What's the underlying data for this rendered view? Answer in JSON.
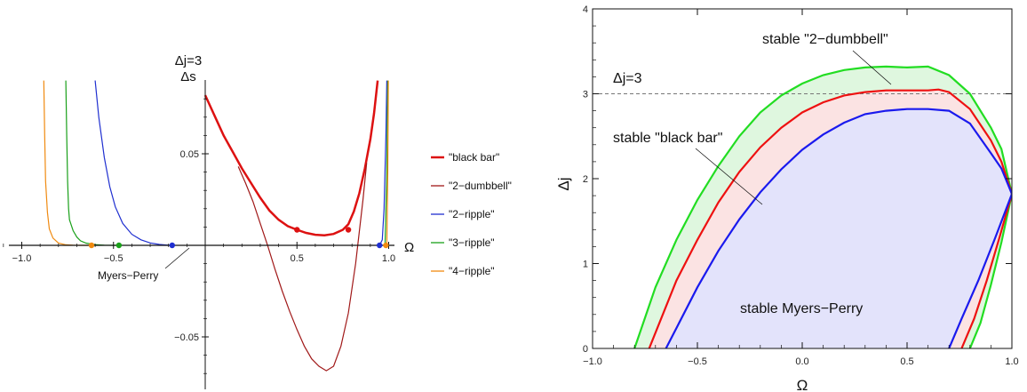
{
  "chart_data": [
    {
      "type": "line",
      "title": "",
      "xlabel": "Ω",
      "ylabel_lines": [
        "Δj=3",
        "Δs"
      ],
      "xlim": [
        -1.2,
        1.05
      ],
      "ylim": [
        -0.077,
        0.09
      ],
      "x_ticks": [
        -1.0,
        -0.5,
        0.5,
        1.0
      ],
      "x_tick_labels": [
        "−1.0",
        "−0.5",
        "0.5",
        "1.0"
      ],
      "y_ticks": [
        0.05,
        -0.05
      ],
      "y_tick_labels": [
        "0.05",
        "−0.05"
      ],
      "legend_position": "right",
      "annotations": [
        {
          "text": "Myers−Perry",
          "x": -0.05,
          "y": 0.0
        }
      ],
      "series": [
        {
          "name": "\"black bar\"",
          "color": "#dd1111",
          "width": 2.5,
          "x": [
            0.0,
            0.05,
            0.1,
            0.15,
            0.2,
            0.25,
            0.3,
            0.35,
            0.4,
            0.45,
            0.5,
            0.55,
            0.6,
            0.65,
            0.7,
            0.75,
            0.78,
            0.81,
            0.84,
            0.87,
            0.9,
            0.92,
            0.94
          ],
          "y": [
            0.082,
            0.071,
            0.06,
            0.051,
            0.042,
            0.034,
            0.026,
            0.019,
            0.014,
            0.0105,
            0.0085,
            0.0068,
            0.0058,
            0.0055,
            0.0062,
            0.0085,
            0.0115,
            0.0185,
            0.0285,
            0.042,
            0.058,
            0.072,
            0.09
          ],
          "markers": [
            {
              "x": 0.5,
              "y": 0.0085
            },
            {
              "x": 0.78,
              "y": 0.0085
            }
          ]
        },
        {
          "name": "\"2−dumbbell\"",
          "color": "#a01818",
          "width": 1.2,
          "x": [
            0.18,
            0.22,
            0.26,
            0.3,
            0.34,
            0.38,
            0.42,
            0.46,
            0.5,
            0.54,
            0.58,
            0.62,
            0.66,
            0.7,
            0.74,
            0.78,
            0.82,
            0.86,
            0.88
          ],
          "y": [
            0.043,
            0.034,
            0.024,
            0.012,
            0.0,
            -0.013,
            -0.025,
            -0.036,
            -0.046,
            -0.055,
            -0.062,
            -0.066,
            -0.0685,
            -0.066,
            -0.055,
            -0.037,
            -0.01,
            0.025,
            0.045
          ]
        },
        {
          "name": "\"2−ripple\"",
          "color": "#1f2fd0",
          "width": 1.2,
          "x": [
            -0.6,
            -0.58,
            -0.55,
            -0.52,
            -0.49,
            -0.45,
            -0.4,
            -0.35,
            -0.3,
            -0.25,
            -0.2,
            -0.18,
            0.95,
            0.965,
            0.975,
            0.985,
            0.99
          ],
          "y": [
            0.09,
            0.07,
            0.048,
            0.032,
            0.021,
            0.012,
            0.006,
            0.003,
            0.0013,
            0.0005,
            0.0001,
            0.0,
            0.0,
            0.003,
            0.02,
            0.06,
            0.09
          ],
          "markers": [
            {
              "x": -0.18,
              "y": 0.0
            },
            {
              "x": 0.95,
              "y": 0.0
            }
          ]
        },
        {
          "name": "\"3−ripple\"",
          "color": "#1aa01a",
          "width": 1.2,
          "x": [
            -0.76,
            -0.755,
            -0.75,
            -0.745,
            -0.74,
            -0.72,
            -0.7,
            -0.68,
            -0.65,
            -0.6,
            -0.55,
            -0.5,
            -0.47,
            0.98,
            0.99,
            0.995
          ],
          "y": [
            0.09,
            0.06,
            0.035,
            0.02,
            0.014,
            0.008,
            0.0045,
            0.0025,
            0.0012,
            0.0004,
            0.0001,
            0.0,
            0.0,
            0.0,
            0.04,
            0.09
          ],
          "markers": [
            {
              "x": -0.47,
              "y": 0.0
            }
          ]
        },
        {
          "name": "\"4−ripple\"",
          "color": "#f08a10",
          "width": 1.2,
          "x": [
            -0.88,
            -0.875,
            -0.87,
            -0.86,
            -0.85,
            -0.83,
            -0.8,
            -0.76,
            -0.72,
            -0.68,
            -0.64,
            -0.62,
            0.99,
            0.995,
            0.998
          ],
          "y": [
            0.09,
            0.06,
            0.035,
            0.018,
            0.009,
            0.004,
            0.0012,
            0.0003,
            0.0001,
            0.0,
            0.0,
            0.0,
            0.0,
            0.04,
            0.09
          ],
          "markers": [
            {
              "x": -0.62,
              "y": 0.0
            },
            {
              "x": 0.985,
              "y": 0.0
            }
          ]
        }
      ]
    },
    {
      "type": "area",
      "title": "",
      "xlabel": "Ω",
      "ylabel": "Δj",
      "xlim": [
        -1.0,
        1.0
      ],
      "ylim": [
        0,
        4
      ],
      "x_ticks": [
        -1.0,
        -0.5,
        0.0,
        0.5,
        1.0
      ],
      "x_tick_labels": [
        "−1.0",
        "−0.5",
        "0.0",
        "0.5",
        "1.0"
      ],
      "y_ticks": [
        0,
        1,
        2,
        3,
        4
      ],
      "y_tick_labels": [
        "0",
        "1",
        "2",
        "3",
        "4"
      ],
      "grid": false,
      "reference_line": {
        "y": 3,
        "label": "Δj=3",
        "style": "dashed"
      },
      "annotations": [
        {
          "text": "stable \"2−dumbbell\""
        },
        {
          "text": "stable \"black bar\""
        },
        {
          "text": "stable Myers−Perry"
        }
      ],
      "series": [
        {
          "name": "green boundary",
          "color": "#22dd22",
          "fill": "#dff7df",
          "upper_x": [
            -0.8,
            -0.7,
            -0.6,
            -0.5,
            -0.4,
            -0.3,
            -0.2,
            -0.1,
            0.0,
            0.1,
            0.2,
            0.3,
            0.4,
            0.5,
            0.6,
            0.7,
            0.8,
            0.9,
            0.95,
            1.0
          ],
          "upper_y": [
            0.0,
            0.72,
            1.28,
            1.75,
            2.15,
            2.5,
            2.78,
            2.98,
            3.12,
            3.22,
            3.28,
            3.31,
            3.32,
            3.31,
            3.32,
            3.22,
            3.0,
            2.6,
            2.35,
            1.82
          ],
          "lower_x": [
            0.8,
            0.85,
            0.9,
            0.95,
            1.0
          ],
          "lower_y": [
            0.0,
            0.3,
            0.75,
            1.25,
            1.82
          ]
        },
        {
          "name": "red boundary",
          "color": "#ee1111",
          "fill": "#fbe3e3",
          "upper_x": [
            -0.73,
            -0.6,
            -0.5,
            -0.4,
            -0.3,
            -0.2,
            -0.1,
            0.0,
            0.1,
            0.2,
            0.3,
            0.4,
            0.5,
            0.6,
            0.65,
            0.7,
            0.8,
            0.9,
            0.95,
            1.0
          ],
          "upper_y": [
            0.0,
            0.8,
            1.28,
            1.72,
            2.08,
            2.37,
            2.6,
            2.78,
            2.9,
            2.98,
            3.02,
            3.04,
            3.04,
            3.04,
            3.05,
            3.02,
            2.82,
            2.45,
            2.2,
            1.82
          ],
          "lower_x": [
            0.76,
            0.82,
            0.88,
            0.94,
            1.0
          ],
          "lower_y": [
            0.0,
            0.35,
            0.8,
            1.3,
            1.82
          ]
        },
        {
          "name": "blue boundary",
          "color": "#1a1aee",
          "fill": "#e3e3fb",
          "upper_x": [
            -0.65,
            -0.6,
            -0.5,
            -0.4,
            -0.3,
            -0.2,
            -0.1,
            0.0,
            0.1,
            0.2,
            0.3,
            0.4,
            0.5,
            0.6,
            0.7,
            0.8,
            0.9,
            0.95,
            1.0
          ],
          "upper_y": [
            0.0,
            0.24,
            0.72,
            1.15,
            1.52,
            1.84,
            2.11,
            2.34,
            2.52,
            2.66,
            2.76,
            2.8,
            2.82,
            2.82,
            2.8,
            2.65,
            2.3,
            2.12,
            1.82
          ],
          "lower_x": [
            0.7,
            0.76,
            0.84,
            0.92,
            1.0
          ],
          "lower_y": [
            0.0,
            0.35,
            0.8,
            1.3,
            1.82
          ]
        }
      ]
    }
  ],
  "left_panel": {
    "xlabel": "Ω",
    "ylabel_top": "Δj=3",
    "ylabel_bottom": "Δs",
    "myers_perry_label": "Myers−Perry",
    "legend": [
      {
        "label": "\"black bar\"",
        "color": "#dd1111"
      },
      {
        "label": "\"2−dumbbell\"",
        "color": "#a01818"
      },
      {
        "label": "\"2−ripple\"",
        "color": "#1f2fd0"
      },
      {
        "label": "\"3−ripple\"",
        "color": "#1aa01a"
      },
      {
        "label": "\"4−ripple\"",
        "color": "#f08a10"
      }
    ]
  },
  "right_panel": {
    "xlabel": "Ω",
    "ylabel": "Δj",
    "dashed_label": "Δj=3",
    "dumbbell_label": "stable \"2−dumbbell\"",
    "blackbar_label": "stable \"black bar\"",
    "mp_label": "stable Myers−Perry"
  }
}
